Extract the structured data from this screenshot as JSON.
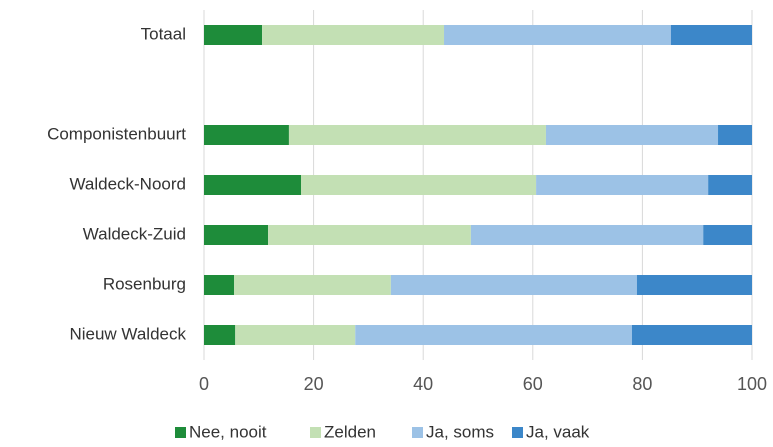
{
  "chart_data": {
    "type": "stacked-bar-horizontal",
    "categories": [
      "Totaal",
      null,
      "Componistenbuurt",
      "Waldeck-Noord",
      "Waldeck-Zuid",
      "Rosenburg",
      "Nieuw Waldeck"
    ],
    "series": [
      {
        "name": "Nee, nooit",
        "color": "#1e8c3a",
        "values": [
          10.6,
          null,
          15.5,
          17.7,
          11.7,
          5.5,
          5.7
        ]
      },
      {
        "name": "Zelden",
        "color": "#c3e0b4",
        "values": [
          33.2,
          null,
          46.9,
          42.9,
          37.0,
          28.6,
          21.9
        ]
      },
      {
        "name": "Ja, soms",
        "color": "#9cc2e6",
        "values": [
          41.4,
          null,
          31.4,
          31.4,
          42.4,
          44.9,
          50.5
        ]
      },
      {
        "name": "Ja, vaak",
        "color": "#3c87c9",
        "values": [
          14.8,
          null,
          6.2,
          8.0,
          8.9,
          21.0,
          21.9
        ]
      }
    ],
    "xlim": [
      0,
      100
    ],
    "xticks": [
      0,
      20,
      40,
      60,
      80,
      100
    ],
    "grid": true,
    "legend": "bottom"
  }
}
